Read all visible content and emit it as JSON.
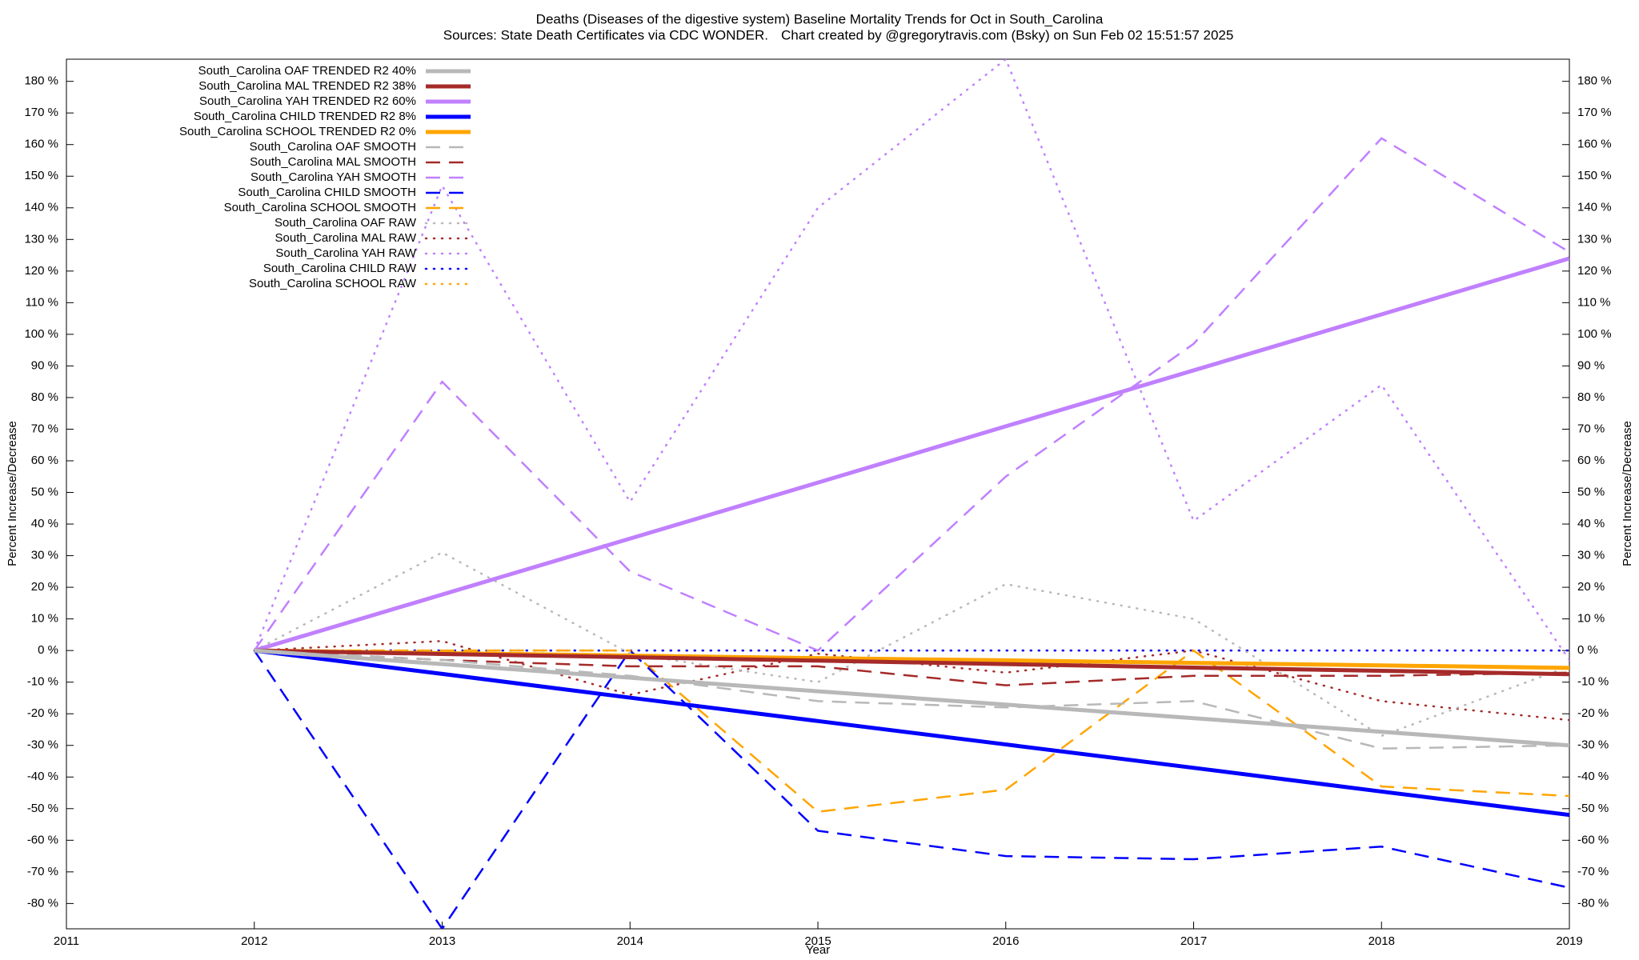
{
  "chart_data": {
    "type": "line",
    "title": "Deaths (Diseases of the digestive system)  Baseline Mortality Trends for Oct in South_Carolina",
    "source": "Sources: State Death Certificates via CDC WONDER.",
    "credit": "Chart created by @gregorytravis.com (Bsky) on Sun Feb 02 15:51:57 2025",
    "x_label": "Year",
    "y_label": "Percent Increase/Decrease",
    "y2_label": "Percent Increase/Decrease",
    "x": [
      2012,
      2013,
      2014,
      2015,
      2016,
      2017,
      2018,
      2019
    ],
    "xlim": [
      2011,
      2019
    ],
    "xticks": [
      2011,
      2012,
      2013,
      2014,
      2015,
      2016,
      2017,
      2018,
      2019
    ],
    "ylim": [
      -88,
      187
    ],
    "yticks": [
      {
        "value": -80,
        "label": "-80 %"
      },
      {
        "value": -70,
        "label": "-70 %"
      },
      {
        "value": -60,
        "label": "-60 %"
      },
      {
        "value": -50,
        "label": "-50 %"
      },
      {
        "value": -40,
        "label": "-40 %"
      },
      {
        "value": -30,
        "label": "-30 %"
      },
      {
        "value": -20,
        "label": "-20 %"
      },
      {
        "value": -10,
        "label": "-10 %"
      },
      {
        "value": 0,
        "label": "0 %"
      },
      {
        "value": 10,
        "label": "10 %"
      },
      {
        "value": 20,
        "label": "20 %"
      },
      {
        "value": 30,
        "label": "30 %"
      },
      {
        "value": 40,
        "label": "40 %"
      },
      {
        "value": 50,
        "label": "50 %"
      },
      {
        "value": 60,
        "label": "60 %"
      },
      {
        "value": 70,
        "label": "70 %"
      },
      {
        "value": 80,
        "label": "80 %"
      },
      {
        "value": 90,
        "label": "90 %"
      },
      {
        "value": 100,
        "label": "100 %"
      },
      {
        "value": 110,
        "label": "110 %"
      },
      {
        "value": 120,
        "label": "120 %"
      },
      {
        "value": 130,
        "label": "130 %"
      },
      {
        "value": 140,
        "label": "140 %"
      },
      {
        "value": 150,
        "label": "150 %"
      },
      {
        "value": 160,
        "label": "160 %"
      },
      {
        "value": 170,
        "label": "170 %"
      },
      {
        "value": 180,
        "label": "180 %"
      }
    ],
    "y2lim": [
      -88,
      187
    ],
    "y2ticks": [
      {
        "value": -80,
        "label": "-80 %"
      },
      {
        "value": -70,
        "label": "-70 %"
      },
      {
        "value": -60,
        "label": "-60 %"
      },
      {
        "value": -50,
        "label": "-50 %"
      },
      {
        "value": -40,
        "label": "-40 %"
      },
      {
        "value": -30,
        "label": "-30 %"
      },
      {
        "value": -20,
        "label": "-20 %"
      },
      {
        "value": -10,
        "label": "-10 %"
      },
      {
        "value": 0,
        "label": "0 %"
      },
      {
        "value": 10,
        "label": "10 %"
      },
      {
        "value": 20,
        "label": "20 %"
      },
      {
        "value": 30,
        "label": "30 %"
      },
      {
        "value": 40,
        "label": "40 %"
      },
      {
        "value": 50,
        "label": "50 %"
      },
      {
        "value": 60,
        "label": "60 %"
      },
      {
        "value": 70,
        "label": "70 %"
      },
      {
        "value": 80,
        "label": "80 %"
      },
      {
        "value": 90,
        "label": "90 %"
      },
      {
        "value": 100,
        "label": "100 %"
      },
      {
        "value": 110,
        "label": "110 %"
      },
      {
        "value": 120,
        "label": "120 %"
      },
      {
        "value": 130,
        "label": "130 %"
      },
      {
        "value": 140,
        "label": "140 %"
      },
      {
        "value": 150,
        "label": "150 %"
      },
      {
        "value": 160,
        "label": "160 %"
      },
      {
        "value": 170,
        "label": "170 %"
      },
      {
        "value": 180,
        "label": "180 %"
      }
    ],
    "legend": "top-left",
    "series": [
      {
        "name": "South_Carolina OAF TRENDED R2  40%",
        "color": "#b8b8b8",
        "style": "solid",
        "values": [
          0,
          -4.3,
          -8.6,
          -12.9,
          -17.1,
          -21.4,
          -25.7,
          -30
        ]
      },
      {
        "name": "South_Carolina MAL TRENDED R2  38%",
        "color": "#a52a2a",
        "style": "solid",
        "values": [
          0,
          -1.1,
          -2.1,
          -3.2,
          -4.3,
          -5.4,
          -6.4,
          -7.5
        ]
      },
      {
        "name": "South_Carolina YAH TRENDED R2  60%",
        "color": "#c080ff",
        "style": "solid",
        "values": [
          0,
          17.7,
          35.4,
          53.1,
          70.9,
          88.6,
          106.3,
          124
        ]
      },
      {
        "name": "South_Carolina CHILD TRENDED R2   8%",
        "color": "#0000ff",
        "style": "solid",
        "values": [
          0,
          -7.4,
          -14.9,
          -22.3,
          -29.7,
          -37.1,
          -44.6,
          -52
        ]
      },
      {
        "name": "South_Carolina SCHOOL TRENDED R2   0%",
        "color": "#ffa500",
        "style": "solid",
        "values": [
          0,
          -0.8,
          -1.6,
          -2.4,
          -3.1,
          -3.9,
          -4.7,
          -5.5
        ]
      },
      {
        "name": "South_Carolina OAF SMOOTH",
        "color": "#b8b8b8",
        "style": "dashed",
        "values": [
          0,
          -3,
          -8,
          -16,
          -18,
          -16,
          -31,
          -30
        ]
      },
      {
        "name": "South_Carolina MAL SMOOTH",
        "color": "#a52a2a",
        "style": "dashed",
        "values": [
          0,
          -3,
          -5,
          -5,
          -11,
          -8,
          -8,
          -7
        ]
      },
      {
        "name": "South_Carolina YAH SMOOTH",
        "color": "#c080ff",
        "style": "dashed",
        "values": [
          0,
          85,
          25,
          0,
          55,
          97,
          162,
          126
        ]
      },
      {
        "name": "South_Carolina CHILD SMOOTH",
        "color": "#0000ff",
        "style": "dashed",
        "values": [
          0,
          -88,
          0,
          -57,
          -65,
          -66,
          -62,
          -75
        ]
      },
      {
        "name": "South_Carolina SCHOOL SMOOTH",
        "color": "#ffa500",
        "style": "dashed",
        "values": [
          0,
          0,
          0,
          -51,
          -44,
          0,
          -43,
          -46
        ]
      },
      {
        "name": "South_Carolina OAF RAW",
        "color": "#b8b8b8",
        "style": "dotted",
        "values": [
          0,
          31,
          -1,
          -10,
          21,
          10,
          -27,
          -5
        ]
      },
      {
        "name": "South_Carolina MAL RAW",
        "color": "#a52a2a",
        "style": "dotted",
        "values": [
          0,
          3,
          -14,
          -1,
          -7,
          0,
          -16,
          -22
        ]
      },
      {
        "name": "South_Carolina YAH RAW",
        "color": "#c080ff",
        "style": "dotted",
        "values": [
          0,
          147,
          47,
          140,
          187,
          41,
          84,
          -3
        ]
      },
      {
        "name": "South_Carolina CHILD RAW",
        "color": "#0000ff",
        "style": "dotted",
        "values": [
          0,
          0,
          0,
          0,
          0,
          0,
          0,
          0
        ]
      },
      {
        "name": "South_Carolina SCHOOL RAW",
        "color": "#ffa500",
        "style": "dotted",
        "values": [
          0,
          0,
          0,
          0,
          0,
          0,
          0,
          0
        ]
      }
    ]
  }
}
